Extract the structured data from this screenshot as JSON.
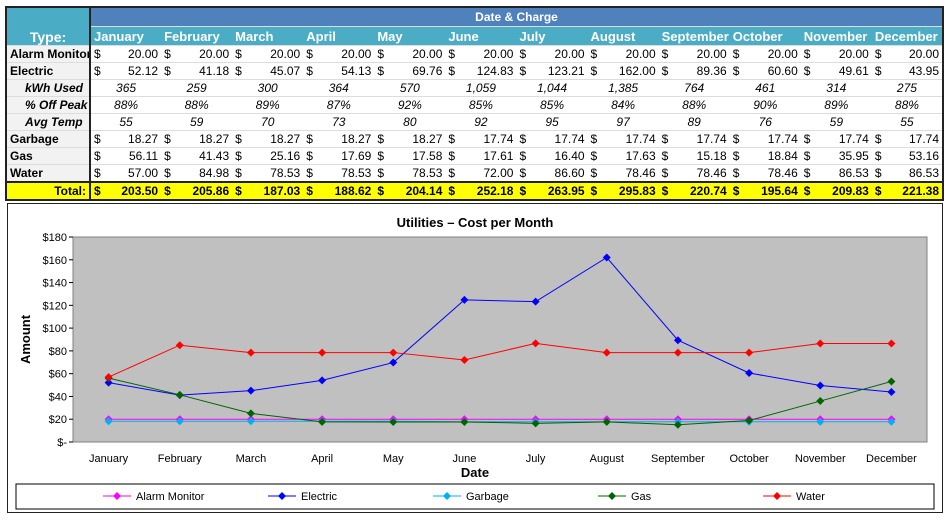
{
  "table": {
    "type_header": "Type:",
    "group_header": "Date & Charge",
    "months": [
      "January",
      "February",
      "March",
      "April",
      "May",
      "June",
      "July",
      "August",
      "September",
      "October",
      "November",
      "December"
    ],
    "currency": "$",
    "rows": [
      {
        "label": "Alarm Monitor",
        "kind": "cur",
        "values": [
          "20.00",
          "20.00",
          "20.00",
          "20.00",
          "20.00",
          "20.00",
          "20.00",
          "20.00",
          "20.00",
          "20.00",
          "20.00",
          "20.00"
        ]
      },
      {
        "label": "Electric",
        "kind": "cur",
        "values": [
          "52.12",
          "41.18",
          "45.07",
          "54.13",
          "69.76",
          "124.83",
          "123.21",
          "162.00",
          "89.36",
          "60.60",
          "49.61",
          "43.95"
        ]
      },
      {
        "label": "kWh Used",
        "kind": "it",
        "values": [
          "365",
          "259",
          "300",
          "364",
          "570",
          "1,059",
          "1,044",
          "1,385",
          "764",
          "461",
          "314",
          "275"
        ]
      },
      {
        "label": "% Off Peak",
        "kind": "it",
        "values": [
          "88%",
          "88%",
          "89%",
          "87%",
          "92%",
          "85%",
          "85%",
          "84%",
          "88%",
          "90%",
          "89%",
          "88%"
        ]
      },
      {
        "label": "Avg Temp",
        "kind": "it",
        "values": [
          "55",
          "59",
          "70",
          "73",
          "80",
          "92",
          "95",
          "97",
          "89",
          "76",
          "59",
          "55"
        ]
      },
      {
        "label": "Garbage",
        "kind": "cur",
        "values": [
          "18.27",
          "18.27",
          "18.27",
          "18.27",
          "18.27",
          "17.74",
          "17.74",
          "17.74",
          "17.74",
          "17.74",
          "17.74",
          "17.74"
        ]
      },
      {
        "label": "Gas",
        "kind": "cur",
        "values": [
          "56.11",
          "41.43",
          "25.16",
          "17.69",
          "17.58",
          "17.61",
          "16.40",
          "17.63",
          "15.18",
          "18.84",
          "35.95",
          "53.16"
        ]
      },
      {
        "label": "Water",
        "kind": "cur",
        "values": [
          "57.00",
          "84.98",
          "78.53",
          "78.53",
          "78.53",
          "72.00",
          "86.60",
          "78.46",
          "78.46",
          "78.46",
          "86.53",
          "86.53"
        ]
      }
    ],
    "total": {
      "label": "Total:",
      "values": [
        "203.50",
        "205.86",
        "187.03",
        "188.62",
        "204.14",
        "252.18",
        "263.95",
        "295.83",
        "220.74",
        "195.64",
        "209.83",
        "221.38"
      ]
    }
  },
  "chart_data": {
    "type": "line",
    "title": "Utilities – Cost per Month",
    "xlabel": "Date",
    "ylabel": "Amount",
    "categories": [
      "January",
      "February",
      "March",
      "April",
      "May",
      "June",
      "July",
      "August",
      "September",
      "October",
      "November",
      "December"
    ],
    "ylim": [
      0,
      180
    ],
    "yticks": [
      "$-",
      "$20",
      "$40",
      "$60",
      "$80",
      "$100",
      "$120",
      "$140",
      "$160",
      "$180"
    ],
    "legend_position": "bottom",
    "series": [
      {
        "name": "Alarm Monitor",
        "color": "#ff00ff",
        "values": [
          20,
          20,
          20,
          20,
          20,
          20,
          20,
          20,
          20,
          20,
          20,
          20
        ]
      },
      {
        "name": "Electric",
        "color": "#0000ff",
        "values": [
          52.12,
          41.18,
          45.07,
          54.13,
          69.76,
          124.83,
          123.21,
          162,
          89.36,
          60.6,
          49.61,
          43.95
        ]
      },
      {
        "name": "Garbage",
        "color": "#00b0f0",
        "values": [
          18.27,
          18.27,
          18.27,
          18.27,
          18.27,
          17.74,
          17.74,
          17.74,
          17.74,
          17.74,
          17.74,
          17.74
        ]
      },
      {
        "name": "Gas",
        "color": "#006400",
        "values": [
          56.11,
          41.43,
          25.16,
          17.69,
          17.58,
          17.61,
          16.4,
          17.63,
          15.18,
          18.84,
          35.95,
          53.16
        ]
      },
      {
        "name": "Water",
        "color": "#ff0000",
        "values": [
          57,
          84.98,
          78.53,
          78.53,
          78.53,
          72,
          86.6,
          78.46,
          78.46,
          78.46,
          86.53,
          86.53
        ]
      }
    ]
  }
}
